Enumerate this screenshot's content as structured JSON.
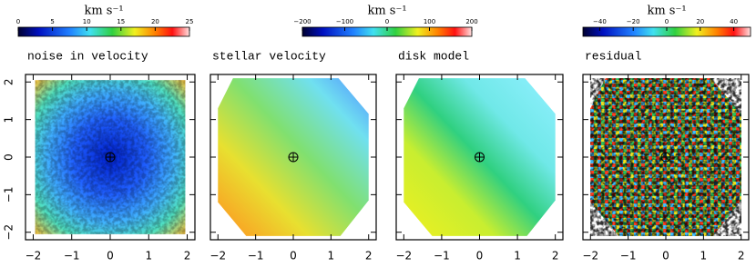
{
  "chart_data": [
    {
      "type": "heatmap",
      "title": "noise in velocity",
      "colorbar_label": "km s⁻¹",
      "clim": [
        0,
        25
      ],
      "cticks": [
        0,
        5,
        10,
        15,
        20,
        25
      ],
      "xlim": [
        -2.2,
        2.2
      ],
      "xticks": [
        {
          "value": -2,
          "label": "−2"
        },
        {
          "value": -1,
          "label": "−1"
        },
        0,
        1,
        2
      ],
      "ylim": [
        -2.2,
        2.2
      ],
      "yticks": [
        {
          "value": -2,
          "label": "−2"
        },
        {
          "value": -1,
          "label": "−1"
        },
        0,
        1,
        2
      ]
    },
    {
      "type": "heatmap",
      "title": "stellar velocity",
      "colorbar_label": "km s⁻¹",
      "clim": [
        -200,
        200
      ],
      "cticks": [
        {
          "value": -200,
          "label": "−200"
        },
        {
          "value": -100,
          "label": "−100"
        },
        0,
        100,
        200
      ],
      "xlim": [
        -2.2,
        2.2
      ],
      "xticks": [
        {
          "value": -2,
          "label": "−2"
        },
        {
          "value": -1,
          "label": "−1"
        },
        0,
        1,
        2
      ],
      "ylim": [
        -2.2,
        2.2
      ]
    },
    {
      "type": "heatmap",
      "title": "disk model",
      "xlim": [
        -2.2,
        2.2
      ],
      "xticks": [
        {
          "value": -2,
          "label": "−2"
        },
        {
          "value": -1,
          "label": "−1"
        },
        0,
        1,
        2
      ],
      "ylim": [
        -2.2,
        2.2
      ]
    },
    {
      "type": "heatmap",
      "title": "residual",
      "colorbar_label": "km s⁻¹",
      "clim": [
        -50,
        50
      ],
      "cticks": [
        {
          "value": -40,
          "label": "−40"
        },
        {
          "value": -20,
          "label": "−20"
        },
        0,
        20,
        40
      ],
      "xlim": [
        -2.2,
        2.2
      ],
      "xticks": [
        {
          "value": -2,
          "label": "−2"
        },
        {
          "value": -1,
          "label": "−1"
        },
        0,
        1,
        2
      ],
      "ylim": [
        -2.2,
        2.2
      ]
    }
  ]
}
